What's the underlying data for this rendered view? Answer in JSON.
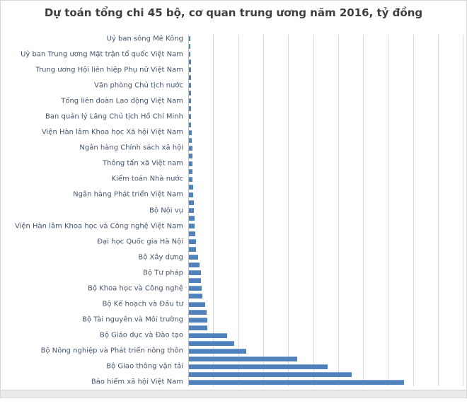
{
  "title": "Dự toán tổng chi 45 bộ, cơ quan trung ương năm 2016, tỷ đồng",
  "colors": {
    "bar": "#4f81bd",
    "bar_highlight": "#7da7d4",
    "gridline": "#d9d9d9",
    "axis": "#bfbfbf",
    "title_text": "#3f3f3f",
    "category_label": "#44546a",
    "tick_label": "#595959"
  },
  "chart_data": {
    "type": "bar",
    "orientation": "horizontal",
    "title": "Dự toán tổng chi 45 bộ, cơ quan trung ương năm 2016, tỷ đồng",
    "unit": "tỷ đồng",
    "xlabel": "",
    "ylabel": "",
    "xlim": [
      0,
      50000
    ],
    "grid": true,
    "legend": false,
    "x_ticks": [
      "0",
      "5,000",
      "10,000",
      "15,000",
      "20,000",
      "25,000",
      "30,000",
      "35,000",
      "40,000",
      "45,000",
      "50,000"
    ],
    "note": "45 bars total; axis shows category labels for every other bar only (unlabeled bars have empty label)",
    "bars": [
      {
        "label": "Uỷ ban sông Mê Kông",
        "value": 300
      },
      {
        "label": "",
        "value": 320
      },
      {
        "label": "Uỷ ban Trung ương Mặt trận tổ quốc Việt Nam",
        "value": 340
      },
      {
        "label": "",
        "value": 360
      },
      {
        "label": "Trung ương Hội liên hiệp Phụ nữ Việt Nam",
        "value": 370
      },
      {
        "label": "",
        "value": 380
      },
      {
        "label": "Văn phòng Chủ tịch nước",
        "value": 390
      },
      {
        "label": "",
        "value": 400
      },
      {
        "label": "Tổng liên đoàn Lao động Việt Nam",
        "value": 430
      },
      {
        "label": "",
        "value": 440
      },
      {
        "label": "Ban quản lý Lăng Chủ tịch Hồ Chí Minh",
        "value": 450
      },
      {
        "label": "",
        "value": 470
      },
      {
        "label": "Viện Hàn lâm Khoa học Xã hội Việt Nam",
        "value": 540
      },
      {
        "label": "",
        "value": 590
      },
      {
        "label": "Ngân hàng Chính sách xã hội",
        "value": 640
      },
      {
        "label": "",
        "value": 650
      },
      {
        "label": "Thông tấn xã Việt nam",
        "value": 680
      },
      {
        "label": "",
        "value": 700
      },
      {
        "label": "Kiểm toán Nhà nước",
        "value": 750
      },
      {
        "label": "",
        "value": 790
      },
      {
        "label": "Ngân hàng Phát triển Việt Nam",
        "value": 800
      },
      {
        "label": "",
        "value": 1000
      },
      {
        "label": "Bộ Nội vụ",
        "value": 1030
      },
      {
        "label": "",
        "value": 1130
      },
      {
        "label": "Viện Hàn lâm Khoa học và Công nghệ Việt Nam",
        "value": 1200
      },
      {
        "label": "",
        "value": 1250
      },
      {
        "label": "Đại học Quốc gia Hà Nội",
        "value": 1400
      },
      {
        "label": "",
        "value": 1450
      },
      {
        "label": "Bộ Xây dựng",
        "value": 1900
      },
      {
        "label": "",
        "value": 2100
      },
      {
        "label": "Bộ Tư pháp",
        "value": 2350
      },
      {
        "label": "",
        "value": 2400
      },
      {
        "label": "Bộ Khoa học và Công nghệ",
        "value": 2580
      },
      {
        "label": "",
        "value": 2700
      },
      {
        "label": "Bộ Kế hoạch và Đầu tư",
        "value": 3270
      },
      {
        "label": "",
        "value": 3600
      },
      {
        "label": "Bộ Tài nguyên và Môi trường",
        "value": 3650
      },
      {
        "label": "",
        "value": 3700
      },
      {
        "label": "Bộ Giáo dục và Đào tạo",
        "value": 7710
      },
      {
        "label": "",
        "value": 9020
      },
      {
        "label": "Bộ Nông nghiệp và Phát triển nông thôn",
        "value": 11540
      },
      {
        "label": "",
        "value": 21730
      },
      {
        "label": "Bộ Giao thông vận tải",
        "value": 27710
      },
      {
        "label": "",
        "value": 32570
      },
      {
        "label": "Bảo hiểm xã hội Việt Nam",
        "value": 43130
      }
    ]
  }
}
